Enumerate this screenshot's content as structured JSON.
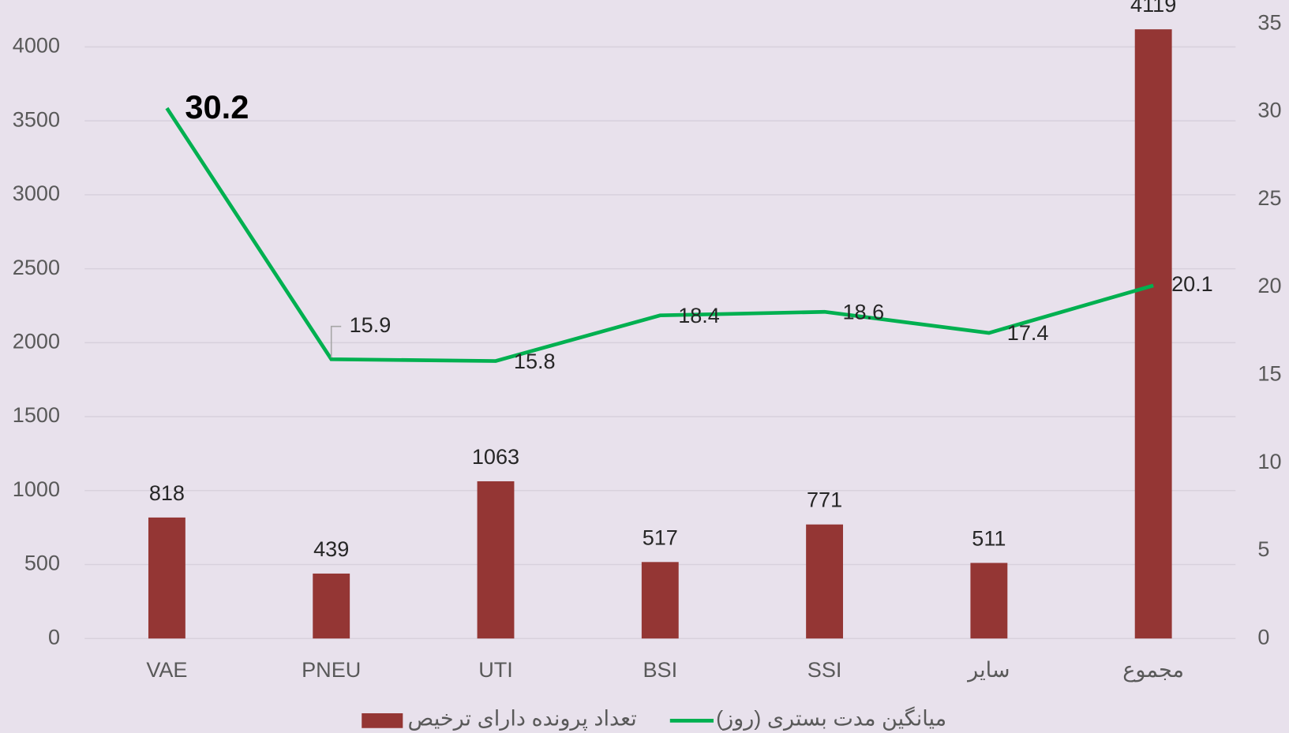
{
  "chart_data": {
    "type": "combo",
    "categories": [
      "VAE",
      "PNEU",
      "UTI",
      "BSI",
      "SSI",
      "سایر",
      "مجموع"
    ],
    "series": [
      {
        "name": "تعداد پرونده دارای ترخیص",
        "type": "bar",
        "color": "#943634",
        "values": [
          818,
          439,
          1063,
          517,
          771,
          511,
          4119
        ]
      },
      {
        "name": "میانگین مدت بستری (روز)",
        "type": "line",
        "axis": "y2",
        "color": "#00b050",
        "values": [
          30.2,
          15.9,
          15.8,
          18.4,
          18.6,
          17.4,
          20.1
        ]
      }
    ],
    "ylim": [
      0,
      4156
    ],
    "yticks": [
      0,
      500,
      1000,
      1500,
      2000,
      2500,
      3000,
      3500,
      4000
    ],
    "y2lim": [
      0,
      35
    ],
    "y2ticks": [
      0,
      5,
      10,
      15,
      20,
      25,
      30,
      35
    ],
    "grid": true,
    "legend": "bottom"
  }
}
